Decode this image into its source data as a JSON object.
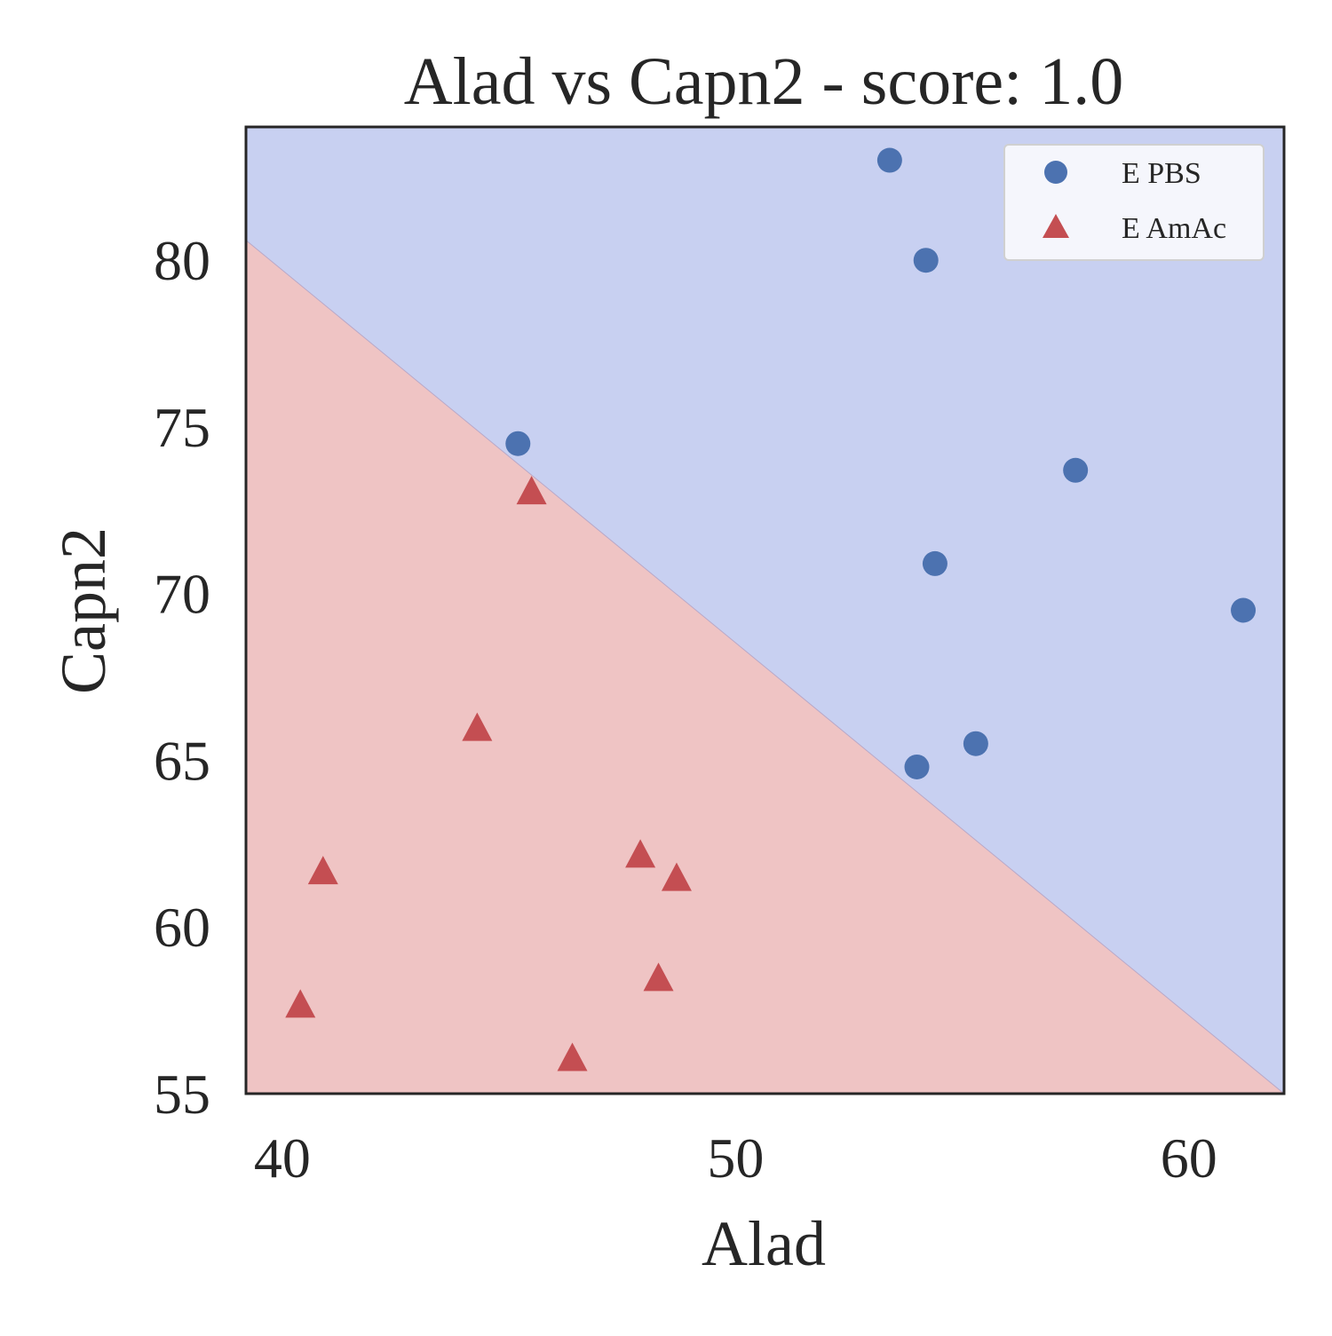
{
  "chart_data": {
    "type": "scatter",
    "title": "Alad vs Capn2 - score: 1.0",
    "xlabel": "Alad",
    "ylabel": "Capn2",
    "xlim": [
      39.2,
      62.1
    ],
    "ylim": [
      55.0,
      84.0
    ],
    "xticks": [
      "40",
      "50",
      "60"
    ],
    "yticks": [
      "55",
      "60",
      "65",
      "70",
      "75",
      "80"
    ],
    "grid": false,
    "legend_position": "top-right",
    "decision_boundary": {
      "description_points": [
        [
          39.2,
          80.6
        ],
        [
          62.1,
          55.0
        ]
      ],
      "upper_region_class": "E PBS",
      "lower_region_class": "E AmAc",
      "upper_color": "#c8d0f1",
      "lower_color": "#efc4c4"
    },
    "series": [
      {
        "name": "E PBS",
        "marker": "circle",
        "color": "#4c72b0",
        "points": [
          [
            53.4,
            83.0
          ],
          [
            54.2,
            80.0
          ],
          [
            45.2,
            74.5
          ],
          [
            57.5,
            73.7
          ],
          [
            54.4,
            70.9
          ],
          [
            61.2,
            69.5
          ],
          [
            55.3,
            65.5
          ],
          [
            54.0,
            64.8
          ]
        ]
      },
      {
        "name": "E AmAc",
        "marker": "triangle",
        "color": "#c44e52",
        "points": [
          [
            45.5,
            73.0
          ],
          [
            44.3,
            65.9
          ],
          [
            40.9,
            61.6
          ],
          [
            47.9,
            62.1
          ],
          [
            48.7,
            61.4
          ],
          [
            48.3,
            58.4
          ],
          [
            40.4,
            57.6
          ],
          [
            46.4,
            56.0
          ]
        ]
      }
    ]
  }
}
